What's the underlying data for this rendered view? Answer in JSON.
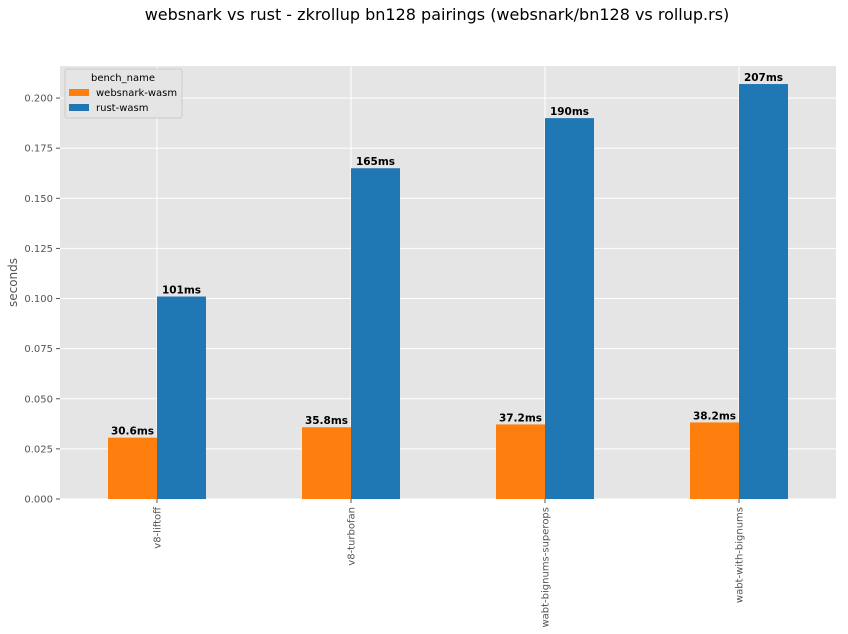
{
  "chart_data": {
    "type": "bar",
    "title": "websnark vs rust - zkrollup bn128 pairings (websnark/bn128 vs rollup.rs)",
    "xlabel": "",
    "ylabel": "seconds",
    "categories": [
      "v8-liftoff",
      "v8-turbofan",
      "wabt-bignums-superops",
      "wabt-with-bignums"
    ],
    "series": [
      {
        "name": "websnark-wasm",
        "color": "#ff7f0e",
        "values": [
          0.0306,
          0.0358,
          0.0372,
          0.0382
        ],
        "labels": [
          "30.6ms",
          "35.8ms",
          "37.2ms",
          "38.2ms"
        ]
      },
      {
        "name": "rust-wasm",
        "color": "#1f77b4",
        "values": [
          0.101,
          0.165,
          0.19,
          0.207
        ],
        "labels": [
          "101ms",
          "165ms",
          "190ms",
          "207ms"
        ]
      }
    ],
    "ylim": [
      0,
      0.216
    ],
    "yticks": [
      "0.000",
      "0.025",
      "0.050",
      "0.075",
      "0.100",
      "0.125",
      "0.150",
      "0.175",
      "0.200"
    ],
    "legend": {
      "title": "bench_name",
      "position": "top-left"
    },
    "grid": true,
    "background": "#e5e5e5"
  }
}
